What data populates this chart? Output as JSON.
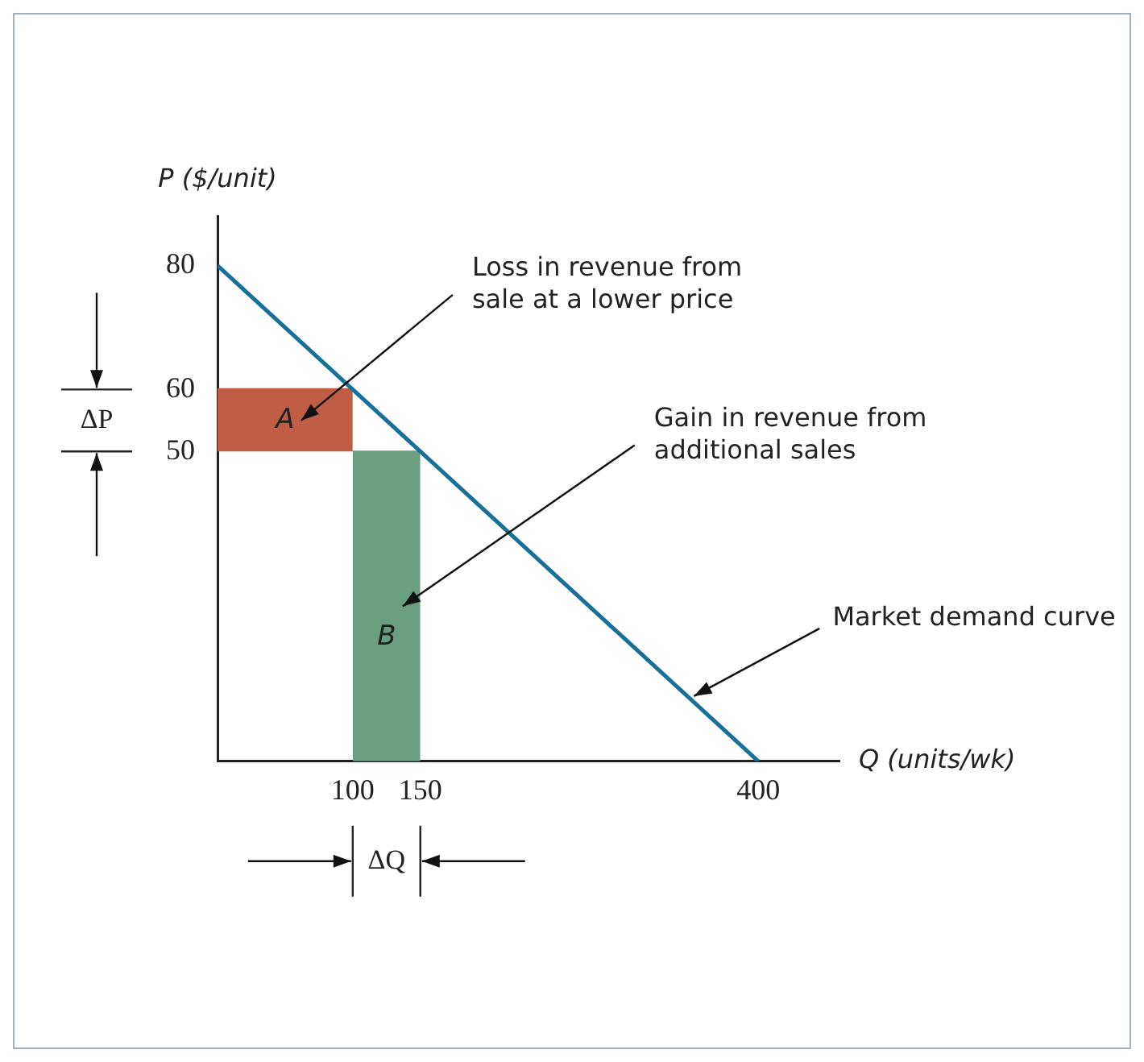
{
  "chart_data": {
    "type": "line",
    "xlabel": "Q (units/wk)",
    "ylabel": "P ($/unit)",
    "xlim": [
      0,
      460
    ],
    "xticks": [
      100,
      150,
      400
    ],
    "ylim": [
      0,
      88
    ],
    "yticks": [
      50,
      60,
      80
    ],
    "grid": false,
    "marker": "none",
    "series": [
      {
        "name": "Market demand curve",
        "color": "#15709a",
        "x": [
          0,
          400
        ],
        "values": [
          80,
          0
        ]
      },
      {
        "name": "A",
        "type": "line",
        "color": "#bf5e45",
        "x": [
          0,
          100
        ],
        "values": [
          60,
          60
        ],
        "lower": [
          50,
          50
        ],
        "upper": [
          60,
          60
        ]
      },
      {
        "name": "B",
        "type": "area",
        "color": "#6a9e80",
        "x": [
          100,
          150
        ],
        "values": [
          50,
          50
        ]
      }
    ],
    "annotations": [
      "Loss in revenue from sale at a lower price",
      "Gain in revenue from additional sales",
      "ΔP",
      "ΔQ"
    ]
  }
}
